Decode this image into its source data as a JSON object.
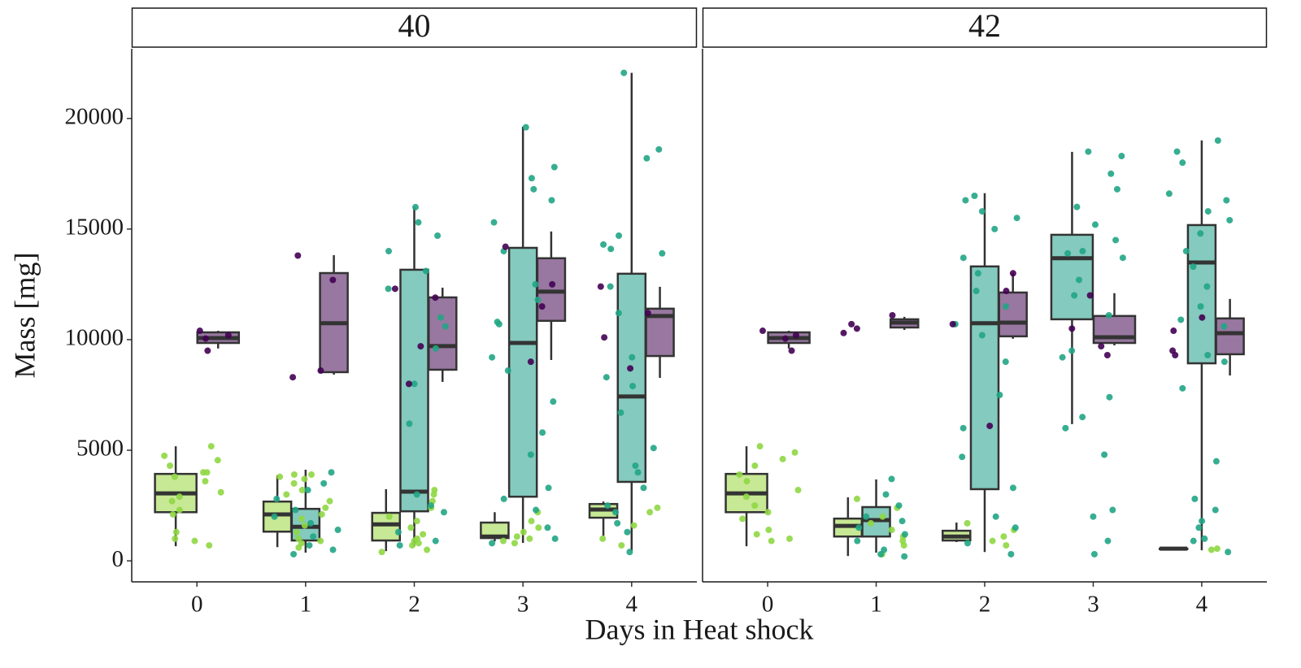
{
  "x_label": "Days in Heat shock",
  "y_label": "Mass [mg]",
  "chart_data": [
    {
      "type": "box",
      "title": "40",
      "categories": [
        "0",
        "1",
        "2",
        "3",
        "4"
      ],
      "ylim": [
        -950,
        23150
      ],
      "yticks": [
        0,
        5000,
        10000,
        15000,
        20000
      ],
      "series": [
        {
          "color": "#c2e68b",
          "point_color": "#8fd744",
          "boxes": [
            [
              660,
              2200,
              3050,
              3930,
              5180
            ],
            [
              620,
              1320,
              2100,
              2680,
              3860
            ],
            [
              440,
              920,
              1650,
              2170,
              3240
            ],
            [
              880,
              1030,
              1100,
              1730,
              2200
            ],
            [
              1100,
              1950,
              2320,
              2570,
              2680
            ]
          ],
          "points": [
            [
              4750,
              4550,
              4300,
              4000,
              3800,
              3600,
              3100,
              2900,
              2700,
              2300,
              2100,
              1300,
              1000,
              900,
              700,
              5180,
              4000
            ],
            [
              3900,
              3800,
              3700,
              3500,
              3200,
              3000,
              2700,
              2400,
              2100,
              1900,
              1600,
              1300,
              1000,
              900,
              800,
              600,
              3900
            ],
            [
              3200,
              3000,
              2700,
              2400,
              2000,
              1800,
              1500,
              1200,
              1000,
              900,
              800,
              700,
              500,
              400
            ],
            [
              2200,
              1800,
              1500,
              1300,
              1100,
              1000,
              900,
              800
            ],
            [
              2400,
              2200,
              1600,
              1000,
              700
            ]
          ]
        },
        {
          "color": "#7ac6b8",
          "point_color": "#21a585",
          "boxes": [
            null,
            [
              370,
              920,
              1540,
              2350,
              4120
            ],
            [
              660,
              2240,
              3130,
              13160,
              15990
            ],
            [
              810,
              2900,
              9850,
              14150,
              19630
            ],
            [
              440,
              3570,
              7430,
              12980,
              22060
            ]
          ],
          "points": [
            [],
            [
              4000,
              3500,
              3200,
              2800,
              2300,
              2000,
              1700,
              1400,
              1100,
              700,
              500,
              300
            ],
            [
              15990,
              15300,
              14700,
              14000,
              13100,
              12300,
              11000,
              10600,
              9600,
              8000,
              6200,
              3000,
              2500,
              2200,
              1300,
              900,
              700
            ],
            [
              19600,
              17800,
              17300,
              16800,
              16300,
              15300,
              14000,
              12500,
              11800,
              10800,
              10700,
              9200,
              8600,
              7200,
              5800,
              4800,
              3300,
              2800,
              2300,
              1500,
              1000,
              800
            ],
            [
              22060,
              18600,
              18200,
              14700,
              14300,
              14100,
              13900,
              12400,
              11200,
              9200,
              8300,
              7900,
              6700,
              5100,
              4300,
              4000,
              3300,
              2500,
              2200,
              1700,
              1300,
              400
            ]
          ]
        },
        {
          "color": "#8f6b98",
          "point_color": "#440154",
          "boxes": [
            [
              9600,
              9850,
              10070,
              10330,
              10400
            ],
            [
              8420,
              8530,
              10740,
              13010,
              13820
            ],
            [
              8090,
              8640,
              9710,
              11910,
              12350
            ],
            [
              9080,
              10850,
              12170,
              13680,
              14890
            ],
            [
              8270,
              9260,
              11070,
              11400,
              12390
            ]
          ],
          "points": [
            [
              10400,
              10200,
              10050,
              9500
            ],
            [
              13800,
              12700,
              8600,
              8300
            ],
            [
              12300,
              11900,
              9700,
              8000
            ],
            [
              14200,
              12500,
              11500,
              9000
            ],
            [
              12400,
              11200,
              10100,
              8700
            ]
          ]
        }
      ]
    },
    {
      "type": "box",
      "title": "42",
      "categories": [
        "0",
        "1",
        "2",
        "3",
        "4"
      ],
      "ylim": [
        -950,
        23150
      ],
      "series": [
        {
          "color": "#c2e68b",
          "point_color": "#8fd744",
          "boxes": [
            [
              660,
              2200,
              3050,
              3930,
              5180
            ],
            [
              220,
              1100,
              1580,
              1910,
              2870
            ],
            [
              850,
              920,
              1100,
              1360,
              1730
            ],
            null,
            [
              550,
              550,
              550,
              550,
              550
            ]
          ],
          "points": [
            [
              5180,
              4900,
              4600,
              4300,
              3900,
              3600,
              3200,
              2900,
              2500,
              2200,
              1900,
              1400,
              1200,
              1000,
              900
            ],
            [
              2800,
              2400,
              2000,
              1700,
              1400,
              1100,
              900,
              700,
              300
            ],
            [
              1700,
              1400,
              1100,
              900,
              700
            ],
            [],
            [
              550,
              500
            ]
          ]
        },
        {
          "color": "#7ac6b8",
          "point_color": "#21a585",
          "boxes": [
            null,
            [
              370,
              1100,
              1840,
              2430,
              3680
            ],
            [
              400,
              3240,
              10740,
              13310,
              16620
            ],
            [
              6180,
              10920,
              13680,
              14740,
              18490
            ],
            [
              480,
              8930,
              13490,
              15180,
              19010
            ]
          ],
          "points": [
            [],
            [
              3700,
              3000,
              2500,
              2000,
              1800,
              1500,
              1200,
              900,
              500,
              300,
              200
            ],
            [
              16500,
              16300,
              15800,
              15500,
              15000,
              13700,
              13000,
              12200,
              11500,
              10700,
              10200,
              9000,
              7500,
              6000,
              4700,
              3300,
              2000,
              1500,
              800,
              300
            ],
            [
              18500,
              18300,
              17500,
              16800,
              16000,
              15200,
              14500,
              14000,
              13900,
              13700,
              12700,
              12000,
              11100,
              9500,
              9200,
              7400,
              6500,
              6000,
              4800,
              2300,
              2000,
              900,
              300
            ],
            [
              19000,
              18500,
              18000,
              16600,
              16300,
              15800,
              15400,
              14800,
              14000,
              13300,
              12400,
              11500,
              10900,
              10600,
              9300,
              9000,
              7800,
              4500,
              2800,
              2300,
              1800,
              1500,
              1000,
              900,
              400
            ]
          ]
        },
        {
          "color": "#8f6b98",
          "point_color": "#440154",
          "boxes": [
            [
              9600,
              9850,
              10070,
              10330,
              10400
            ],
            [
              10440,
              10550,
              10770,
              10920,
              11030
            ],
            [
              10040,
              10150,
              10770,
              12130,
              13010
            ],
            [
              9740,
              9850,
              10110,
              11070,
              12100
            ],
            [
              8380,
              9340,
              10290,
              10960,
              11840
            ]
          ],
          "points": [
            [
              10400,
              10200,
              10050,
              9500
            ],
            [
              11100,
              10700,
              10500,
              10300
            ],
            [
              13000,
              12200,
              10700,
              6100
            ],
            [
              12000,
              10500,
              9700,
              9300
            ],
            [
              11000,
              10400,
              9500,
              9300
            ]
          ]
        }
      ]
    }
  ]
}
